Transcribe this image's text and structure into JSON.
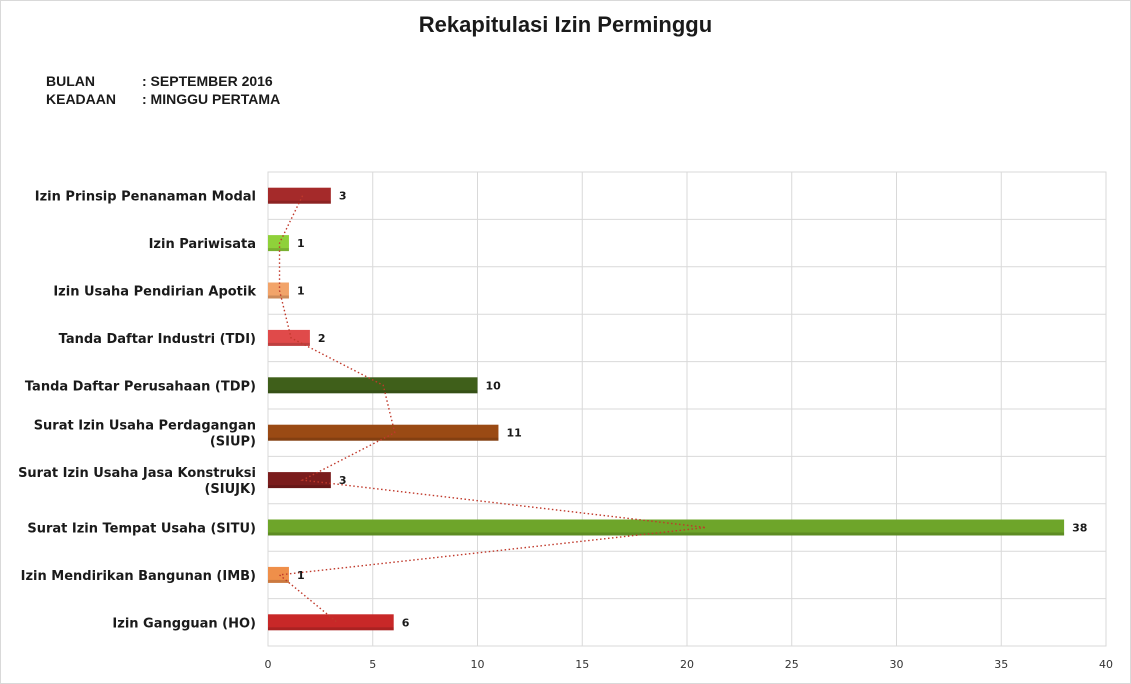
{
  "chart_data": {
    "type": "bar",
    "orientation": "horizontal",
    "title": "Rekapitulasi Izin Perminggu",
    "meta": [
      {
        "label": "BULAN",
        "value": ": SEPTEMBER 2016"
      },
      {
        "label": "KEADAAN",
        "value": ": MINGGU PERTAMA"
      }
    ],
    "categories": [
      [
        "Izin Prinsip Penanaman Modal"
      ],
      [
        "Izin Pariwisata"
      ],
      [
        "Izin Usaha Pendirian Apotik"
      ],
      [
        "Tanda Daftar Industri (TDI)"
      ],
      [
        "Tanda Daftar Perusahaan (TDP)"
      ],
      [
        "Surat Izin Usaha Perdagangan",
        "(SIUP)"
      ],
      [
        "Surat Izin Usaha Jasa Konstruksi",
        "(SIUJK)"
      ],
      [
        "Surat Izin Tempat Usaha (SITU)"
      ],
      [
        "Izin Mendirikan Bangunan (IMB)"
      ],
      [
        "Izin Gangguan (HO)"
      ]
    ],
    "values": [
      3,
      1,
      1,
      2,
      10,
      11,
      3,
      38,
      1,
      6
    ],
    "bar_colors": [
      "#a52a2a",
      "#8fd13a",
      "#f2a46a",
      "#e04a4a",
      "#3f5f1a",
      "#9a4a14",
      "#7a1c1c",
      "#6ea52a",
      "#ef8f4a",
      "#c82828"
    ],
    "xlim": [
      0,
      40
    ],
    "xticks": [
      0,
      5,
      10,
      15,
      20,
      25,
      30,
      35,
      40
    ],
    "grid": true,
    "legend": "none",
    "trendline": {
      "style": "dotted",
      "color": "#c0392b"
    }
  }
}
